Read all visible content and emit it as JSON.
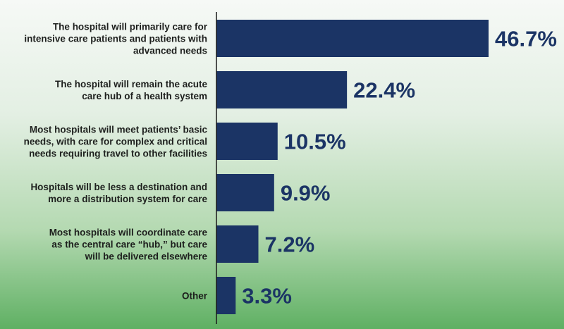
{
  "colors": {
    "bar": "#1b3465",
    "value_text": "#1b3465",
    "axis": "#1a1a1a",
    "category_text": "#1d1f1d"
  },
  "chart_data": {
    "type": "bar",
    "orientation": "horizontal",
    "categories": [
      [
        "The hospital will primarily care for",
        "intensive care patients and patients with",
        "advanced needs"
      ],
      [
        "The hospital will remain the acute",
        "care hub of a health system"
      ],
      [
        "Most hospitals will meet patients’ basic",
        "needs, with care for complex and critical",
        "needs requiring travel to other facilities"
      ],
      [
        "Hospitals will be less a destination and",
        "more a distribution system for care"
      ],
      [
        "Most hospitals will coordinate care",
        "as the central care “hub,” but care",
        "will be delivered elsewhere"
      ],
      [
        "Other"
      ]
    ],
    "values": [
      46.7,
      22.4,
      10.5,
      9.9,
      7.2,
      3.3
    ],
    "value_labels": [
      "46.7%",
      "22.4%",
      "10.5%",
      "9.9%",
      "7.2%",
      "3.3%"
    ],
    "xlim": [
      0,
      50
    ],
    "grid": false,
    "legend": "none"
  }
}
